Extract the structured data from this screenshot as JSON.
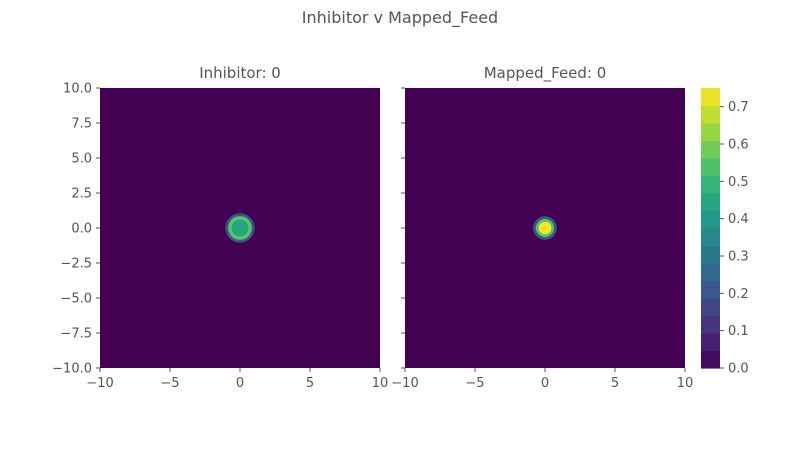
{
  "figure": {
    "suptitle": "Inhibitor v Mapped_Feed"
  },
  "chart_data": {
    "type": "heatmap",
    "title": "Inhibitor v Mapped_Feed",
    "panels": [
      {
        "title": "Inhibitor: 0",
        "xlim": [
          -10,
          10
        ],
        "ylim": [
          -10,
          10
        ],
        "x_ticks": [
          -10,
          -5,
          0,
          5,
          10
        ],
        "y_ticks": [
          -10.0,
          -7.5,
          -5.0,
          -2.5,
          0.0,
          2.5,
          5.0,
          7.5,
          10.0
        ],
        "x_tick_labels": [
          "−10",
          "−5",
          "0",
          "5",
          "10"
        ],
        "y_tick_labels": [
          "−10.0",
          "−7.5",
          "−5.0",
          "−2.5",
          "0.0",
          "2.5",
          "5.0",
          "7.5",
          "10.0"
        ],
        "background_value": 0.0,
        "blob": {
          "cx": 0,
          "cy": 0,
          "core_value": 0.45,
          "rings": [
            {
              "r": 0.6,
              "value": 0.45
            },
            {
              "r": 0.85,
              "value": 0.55
            },
            {
              "r": 1.05,
              "value": 0.2
            }
          ]
        }
      },
      {
        "title": "Mapped_Feed: 0",
        "xlim": [
          -10,
          10
        ],
        "ylim": [
          -10,
          10
        ],
        "x_ticks": [
          -10,
          -5,
          0,
          5,
          10
        ],
        "x_tick_labels": [
          "−10",
          "−5",
          "0",
          "5",
          "10"
        ],
        "background_value": 0.0,
        "blob": {
          "cx": 0,
          "cy": 0,
          "core_value": 0.75,
          "rings": [
            {
              "r": 0.45,
              "value": 0.75
            },
            {
              "r": 0.65,
              "value": 0.55
            },
            {
              "r": 0.85,
              "value": 0.2
            }
          ]
        }
      }
    ],
    "colorbar": {
      "colormap": "viridis",
      "range": [
        0.0,
        0.75
      ],
      "levels": 16,
      "ticks": [
        0.0,
        0.1,
        0.2,
        0.3,
        0.4,
        0.5,
        0.6,
        0.7
      ],
      "tick_labels": [
        "0.0",
        "0.1",
        "0.2",
        "0.3",
        "0.4",
        "0.5",
        "0.6",
        "0.7"
      ]
    },
    "grid": false
  }
}
